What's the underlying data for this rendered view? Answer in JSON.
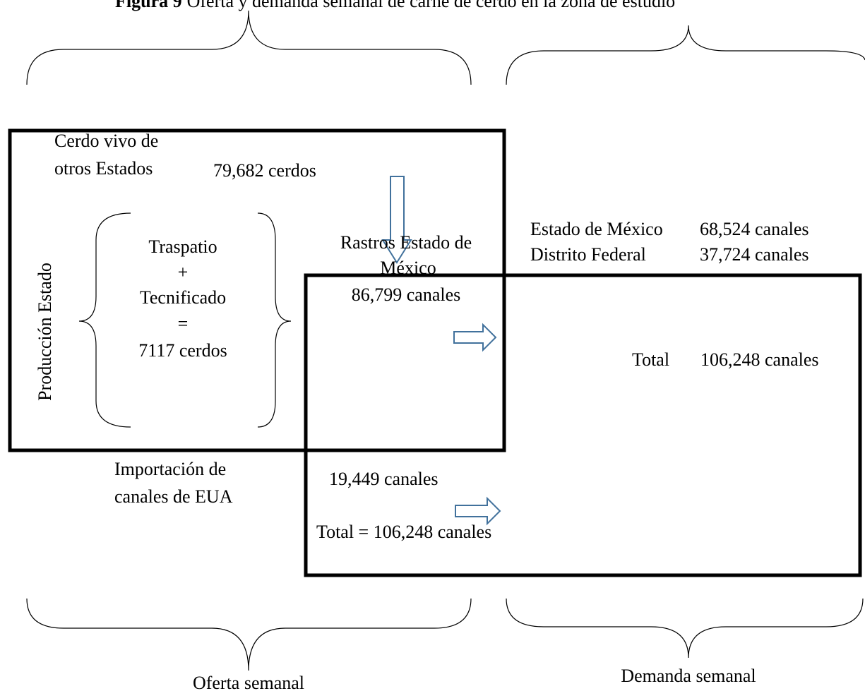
{
  "title": {
    "label": "Figura 9",
    "text": "Oferta y demanda semanal de carne de cerdo en la zona de estudio"
  },
  "supply": {
    "live_pigs": {
      "lines": [
        "Cerdo vivo de",
        "otros Estados"
      ],
      "amount": "79,682 cerdos"
    },
    "state_production": {
      "label": "Producción Estado",
      "lines": [
        "Traspatio",
        "+",
        "Tecnificado",
        "=",
        "7117 cerdos"
      ]
    },
    "slaughterhouses": {
      "lines": [
        "Rastros Estado de",
        "México"
      ],
      "amount": "86,799 canales"
    },
    "imports": {
      "lines": [
        "Importación de",
        "canales de EUA"
      ],
      "amount": "19,449 canales"
    },
    "total": "Total = 106,248 canales",
    "caption": "Oferta semanal"
  },
  "demand": {
    "items": [
      {
        "name": "Estado de México",
        "amount": "68,524 canales"
      },
      {
        "name": "Distrito Federal",
        "amount": "37,724 canales"
      }
    ],
    "total": {
      "label": "Total",
      "amount": "106,248 canales"
    },
    "caption": "Demanda semanal"
  }
}
